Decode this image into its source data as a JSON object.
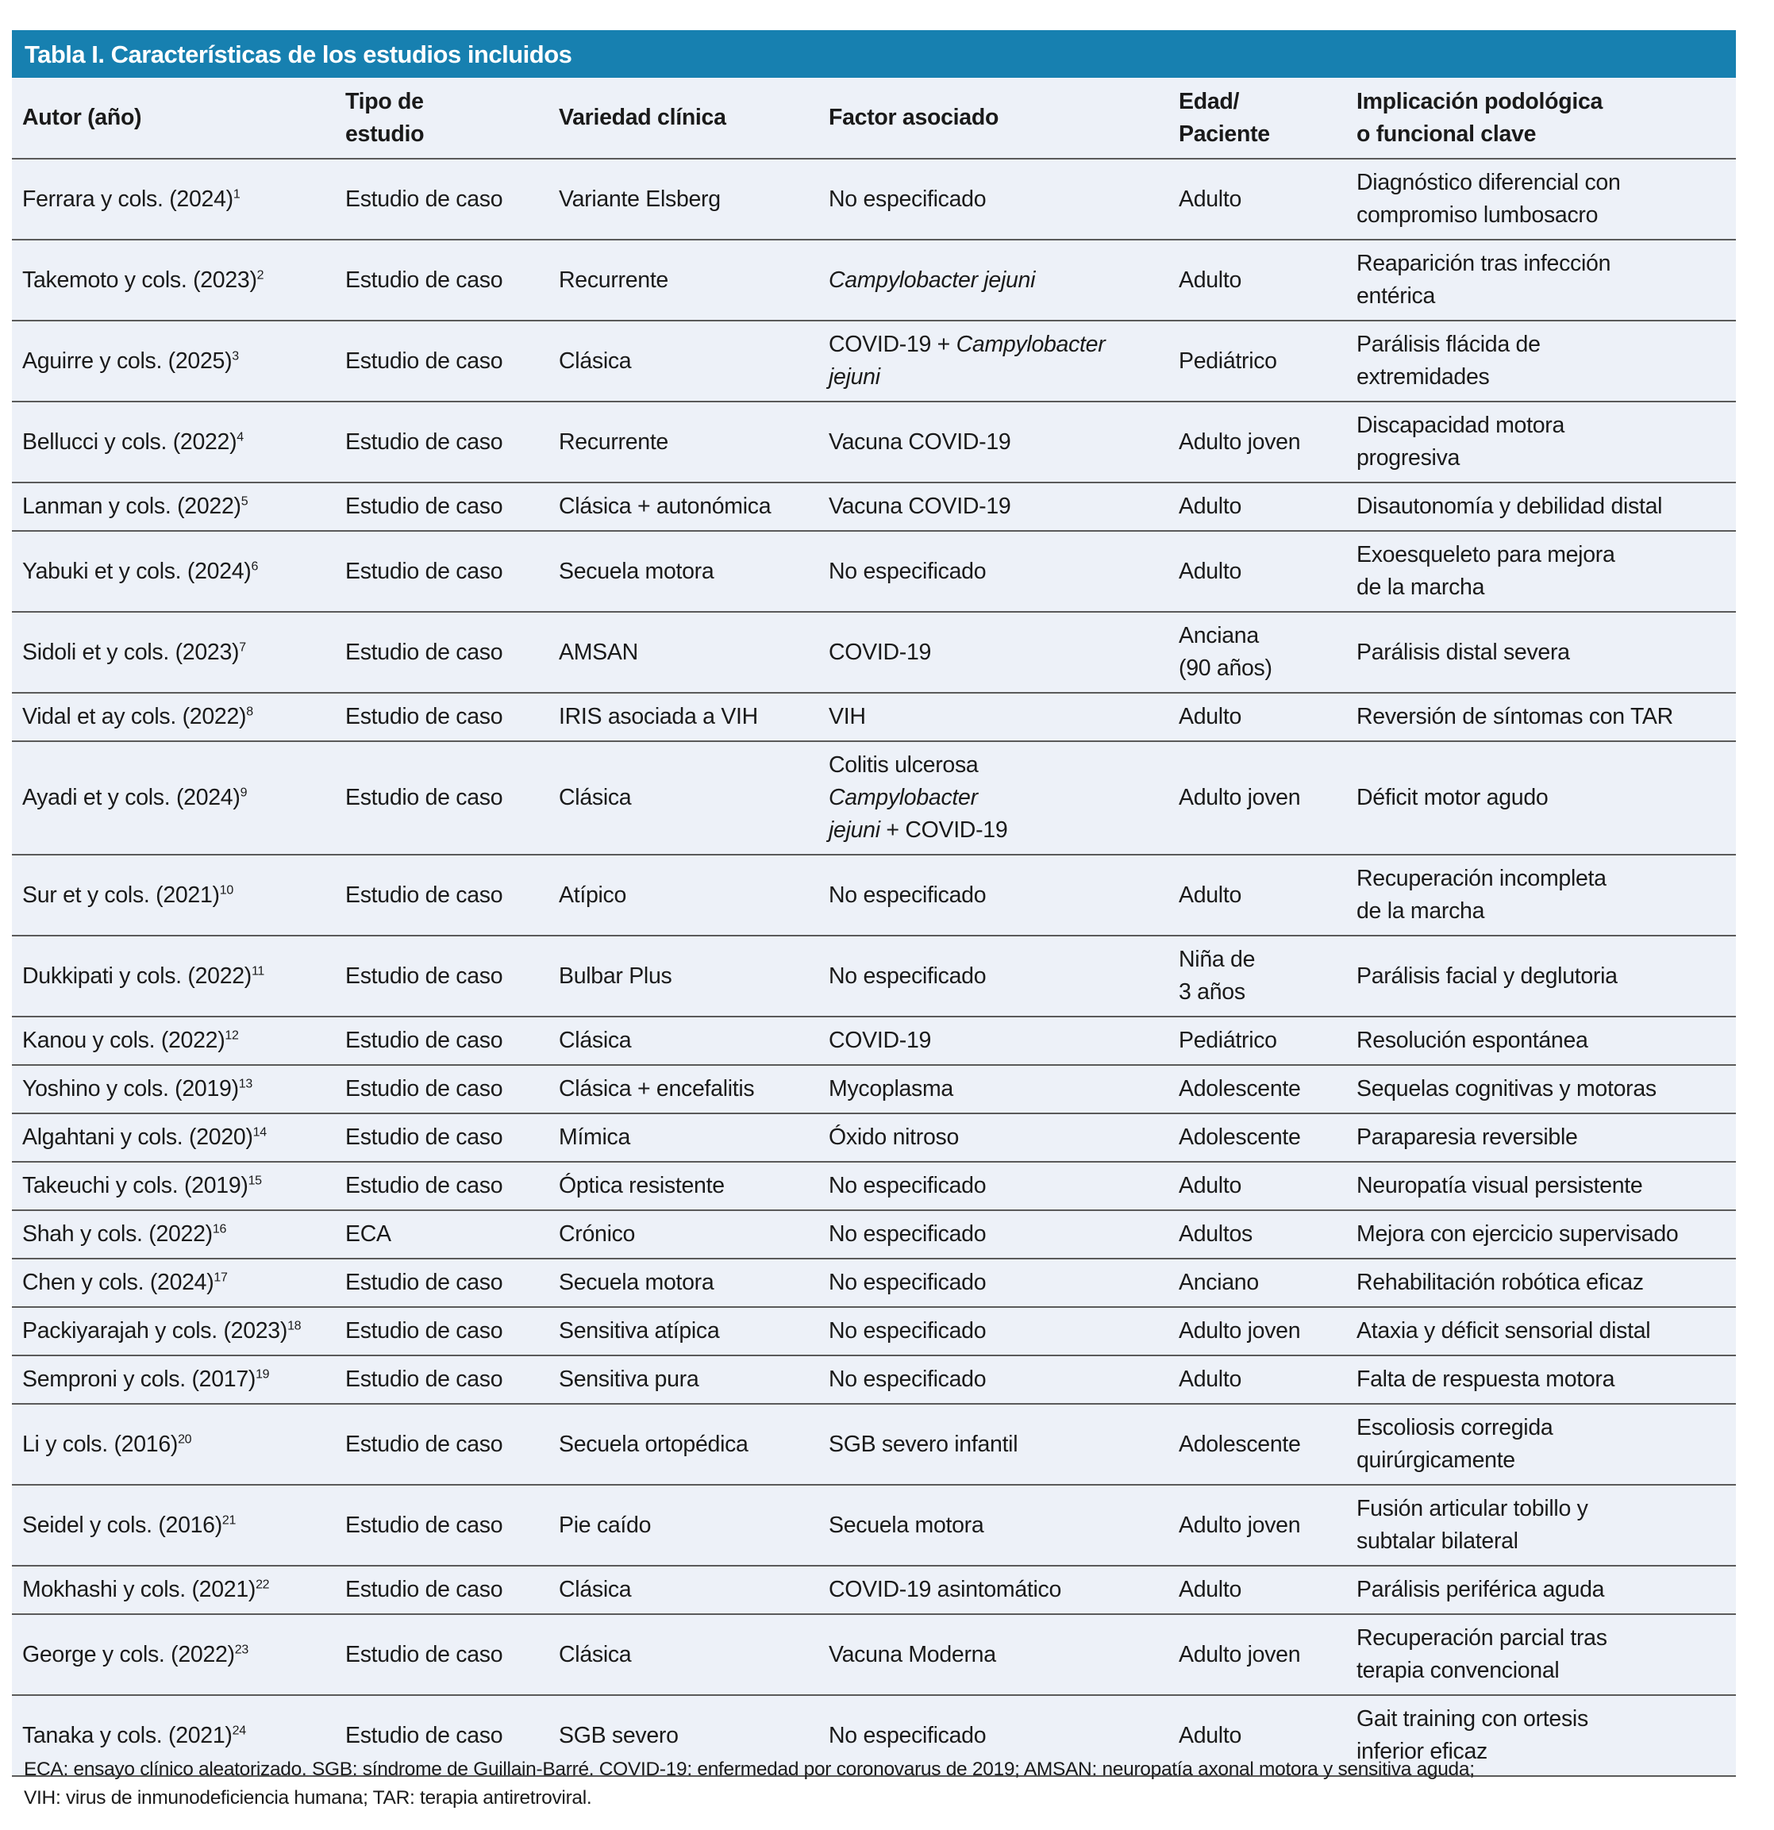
{
  "title": "Tabla I. Características de los estudios incluidos",
  "colors": {
    "title_bar": "#1780b0",
    "row_background": "#edf1f8",
    "rule": "#5a5a5a"
  },
  "headers": [
    "Autor (año)",
    "Tipo de\nestudio",
    "Variedad clínica",
    "Factor asociado",
    "Edad/\nPaciente",
    "Implicación podológica\no funcional clave"
  ],
  "rows": [
    {
      "author": "Ferrara y cols. (2024)",
      "ref": "1",
      "type": "Estudio de caso",
      "variety": "Variante Elsberg",
      "factor": [
        {
          "text": "No especificado",
          "italic": false
        }
      ],
      "age": "Adulto",
      "implication": "Diagnóstico diferencial con\ncompromiso lumbosacro"
    },
    {
      "author": "Takemoto y cols. (2023)",
      "ref": "2",
      "type": "Estudio de caso",
      "variety": "Recurrente",
      "factor": [
        {
          "text": "Campylobacter jejuni",
          "italic": true
        }
      ],
      "age": "Adulto",
      "implication": "Reaparición tras infección\nentérica"
    },
    {
      "author": "Aguirre y cols. (2025)",
      "ref": "3",
      "type": "Estudio de caso",
      "variety": "Clásica",
      "factor": [
        {
          "text": "COVID-19 + ",
          "italic": false
        },
        {
          "text": "Campylobacter\njejuni",
          "italic": true
        }
      ],
      "age": "Pediátrico",
      "implication": "Parálisis flácida de\nextremidades"
    },
    {
      "author": "Bellucci y cols. (2022)",
      "ref": "4",
      "type": "Estudio de caso",
      "variety": "Recurrente",
      "factor": [
        {
          "text": "Vacuna COVID-19",
          "italic": false
        }
      ],
      "age": "Adulto joven",
      "implication": "Discapacidad motora\nprogresiva"
    },
    {
      "author": "Lanman y cols. (2022)",
      "ref": "5",
      "type": "Estudio de caso",
      "variety": "Clásica + autonómica",
      "factor": [
        {
          "text": "Vacuna COVID-19",
          "italic": false
        }
      ],
      "age": "Adulto",
      "implication": "Disautonomía y debilidad distal"
    },
    {
      "author": "Yabuki et y cols. (2024)",
      "ref": "6",
      "type": "Estudio de caso",
      "variety": "Secuela motora",
      "factor": [
        {
          "text": "No especificado",
          "italic": false
        }
      ],
      "age": "Adulto",
      "implication": "Exoesqueleto para mejora\nde la marcha"
    },
    {
      "author": "Sidoli et y cols. (2023)",
      "ref": "7",
      "type": "Estudio de caso",
      "variety": "AMSAN",
      "factor": [
        {
          "text": "COVID-19",
          "italic": false
        }
      ],
      "age": "Anciana\n(90 años)",
      "implication": "Parálisis distal severa"
    },
    {
      "author": "Vidal et ay cols. (2022)",
      "ref": "8",
      "type": "Estudio de caso",
      "variety": "IRIS asociada a VIH",
      "factor": [
        {
          "text": "VIH",
          "italic": false
        }
      ],
      "age": "Adulto",
      "implication": "Reversión de síntomas con TAR"
    },
    {
      "author": "Ayadi et y cols. (2024)",
      "ref": "9",
      "type": "Estudio de caso",
      "variety": "Clásica",
      "factor": [
        {
          "text": "Colitis ulcerosa\n",
          "italic": false
        },
        {
          "text": "Campylobacter\njejuni",
          "italic": true
        },
        {
          "text": " + COVID-19",
          "italic": false
        }
      ],
      "age": "Adulto joven",
      "implication": "Déficit motor agudo"
    },
    {
      "author": "Sur et y cols. (2021)",
      "ref": "10",
      "type": "Estudio de caso",
      "variety": "Atípico",
      "factor": [
        {
          "text": "No especificado",
          "italic": false
        }
      ],
      "age": "Adulto",
      "implication": "Recuperación incompleta\nde la marcha"
    },
    {
      "author": "Dukkipati y cols. (2022)",
      "ref": "11",
      "type": "Estudio de caso",
      "variety": "Bulbar Plus",
      "factor": [
        {
          "text": "No especificado",
          "italic": false
        }
      ],
      "age": "Niña de\n3 años",
      "implication": "Parálisis facial y deglutoria"
    },
    {
      "author": "Kanou y cols. (2022)",
      "ref": "12",
      "type": "Estudio de caso",
      "variety": "Clásica",
      "factor": [
        {
          "text": "COVID-19",
          "italic": false
        }
      ],
      "age": "Pediátrico",
      "implication": "Resolución espontánea"
    },
    {
      "author": "Yoshino y cols. (2019)",
      "ref": "13",
      "type": "Estudio de caso",
      "variety": "Clásica + encefalitis",
      "factor": [
        {
          "text": "Mycoplasma",
          "italic": false
        }
      ],
      "age": "Adolescente",
      "implication": "Sequelas cognitivas y motoras"
    },
    {
      "author": "Algahtani y cols. (2020)",
      "ref": "14",
      "type": "Estudio de caso",
      "variety": "Mímica",
      "factor": [
        {
          "text": "Óxido nitroso",
          "italic": false
        }
      ],
      "age": "Adolescente",
      "implication": "Paraparesia reversible"
    },
    {
      "author": "Takeuchi y cols. (2019)",
      "ref": "15",
      "type": "Estudio de caso",
      "variety": "Óptica resistente",
      "factor": [
        {
          "text": "No especificado",
          "italic": false
        }
      ],
      "age": "Adulto",
      "implication": "Neuropatía visual persistente"
    },
    {
      "author": "Shah y cols. (2022)",
      "ref": "16",
      "type": "ECA",
      "variety": "Crónico",
      "factor": [
        {
          "text": "No especificado",
          "italic": false
        }
      ],
      "age": "Adultos",
      "implication": "Mejora con ejercicio supervisado"
    },
    {
      "author": "Chen y cols. (2024)",
      "ref": "17",
      "type": "Estudio de caso",
      "variety": "Secuela motora",
      "factor": [
        {
          "text": "No especificado",
          "italic": false
        }
      ],
      "age": "Anciano",
      "implication": "Rehabilitación robótica eficaz"
    },
    {
      "author": "Packiyarajah y cols. (2023)",
      "ref": "18",
      "type": "Estudio de caso",
      "variety": "Sensitiva atípica",
      "factor": [
        {
          "text": "No especificado",
          "italic": false
        }
      ],
      "age": "Adulto joven",
      "implication": "Ataxia y déficit sensorial distal"
    },
    {
      "author": "Semproni y cols. (2017)",
      "ref": "19",
      "type": "Estudio de caso",
      "variety": "Sensitiva pura",
      "factor": [
        {
          "text": "No especificado",
          "italic": false
        }
      ],
      "age": "Adulto",
      "implication": "Falta de respuesta motora"
    },
    {
      "author": "Li y cols. (2016)",
      "ref": "20",
      "type": "Estudio de caso",
      "variety": "Secuela ortopédica",
      "factor": [
        {
          "text": "SGB severo infantil",
          "italic": false
        }
      ],
      "age": "Adolescente",
      "implication": "Escoliosis corregida\nquirúrgicamente"
    },
    {
      "author": "Seidel y cols. (2016)",
      "ref": "21",
      "type": "Estudio de caso",
      "variety": "Pie caído",
      "factor": [
        {
          "text": "Secuela motora",
          "italic": false
        }
      ],
      "age": "Adulto joven",
      "implication": "Fusión articular tobillo y\nsubtalar bilateral"
    },
    {
      "author": "Mokhashi y cols. (2021)",
      "ref": "22",
      "type": "Estudio de caso",
      "variety": "Clásica",
      "factor": [
        {
          "text": "COVID-19 asintomático",
          "italic": false
        }
      ],
      "age": "Adulto",
      "implication": "Parálisis periférica aguda"
    },
    {
      "author": "George y cols. (2022)",
      "ref": "23",
      "type": "Estudio de caso",
      "variety": "Clásica",
      "factor": [
        {
          "text": "Vacuna Moderna",
          "italic": false
        }
      ],
      "age": "Adulto joven",
      "implication": "Recuperación parcial tras\nterapia convencional"
    },
    {
      "author": "Tanaka y cols. (2021)",
      "ref": "24",
      "type": "Estudio de caso",
      "variety": "SGB severo",
      "factor": [
        {
          "text": "No especificado",
          "italic": false
        }
      ],
      "age": "Adulto",
      "implication": "Gait training con ortesis\ninferior eficaz"
    }
  ],
  "footnote": "ECA: ensayo clínico aleatorizado. SGB: síndrome de Guillain-Barré. COVID-19: enfermedad por coronovarus de 2019; AMSAN: neuropatía axonal motora y sensitiva aguda;\nVIH: virus de inmunodeficiencia humana; TAR: terapia antiretroviral."
}
